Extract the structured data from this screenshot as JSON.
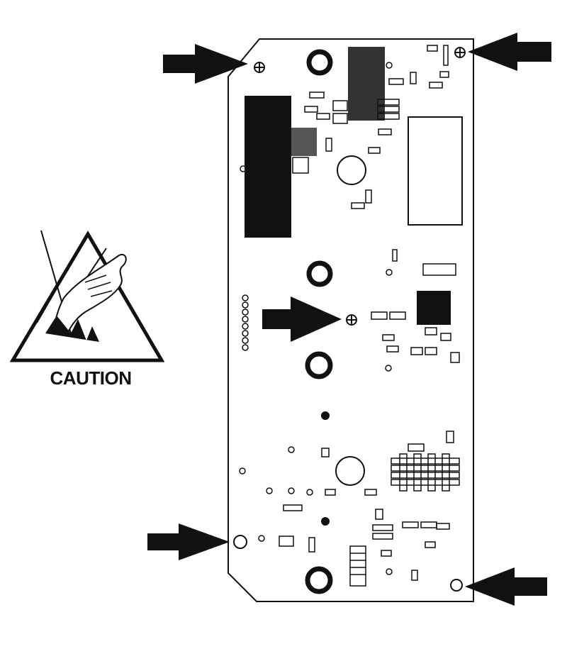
{
  "caution": {
    "label": "CAUTION",
    "symbol": "esd-hand-warning-icon"
  },
  "figure": {
    "board": "circuit-board",
    "mounting_points": 5,
    "arrows": [
      "arrow-top-left",
      "arrow-top-right",
      "arrow-center",
      "arrow-bottom-left",
      "arrow-bottom-right"
    ]
  },
  "colors": {
    "ink": "#111111",
    "paper": "#ffffff"
  }
}
